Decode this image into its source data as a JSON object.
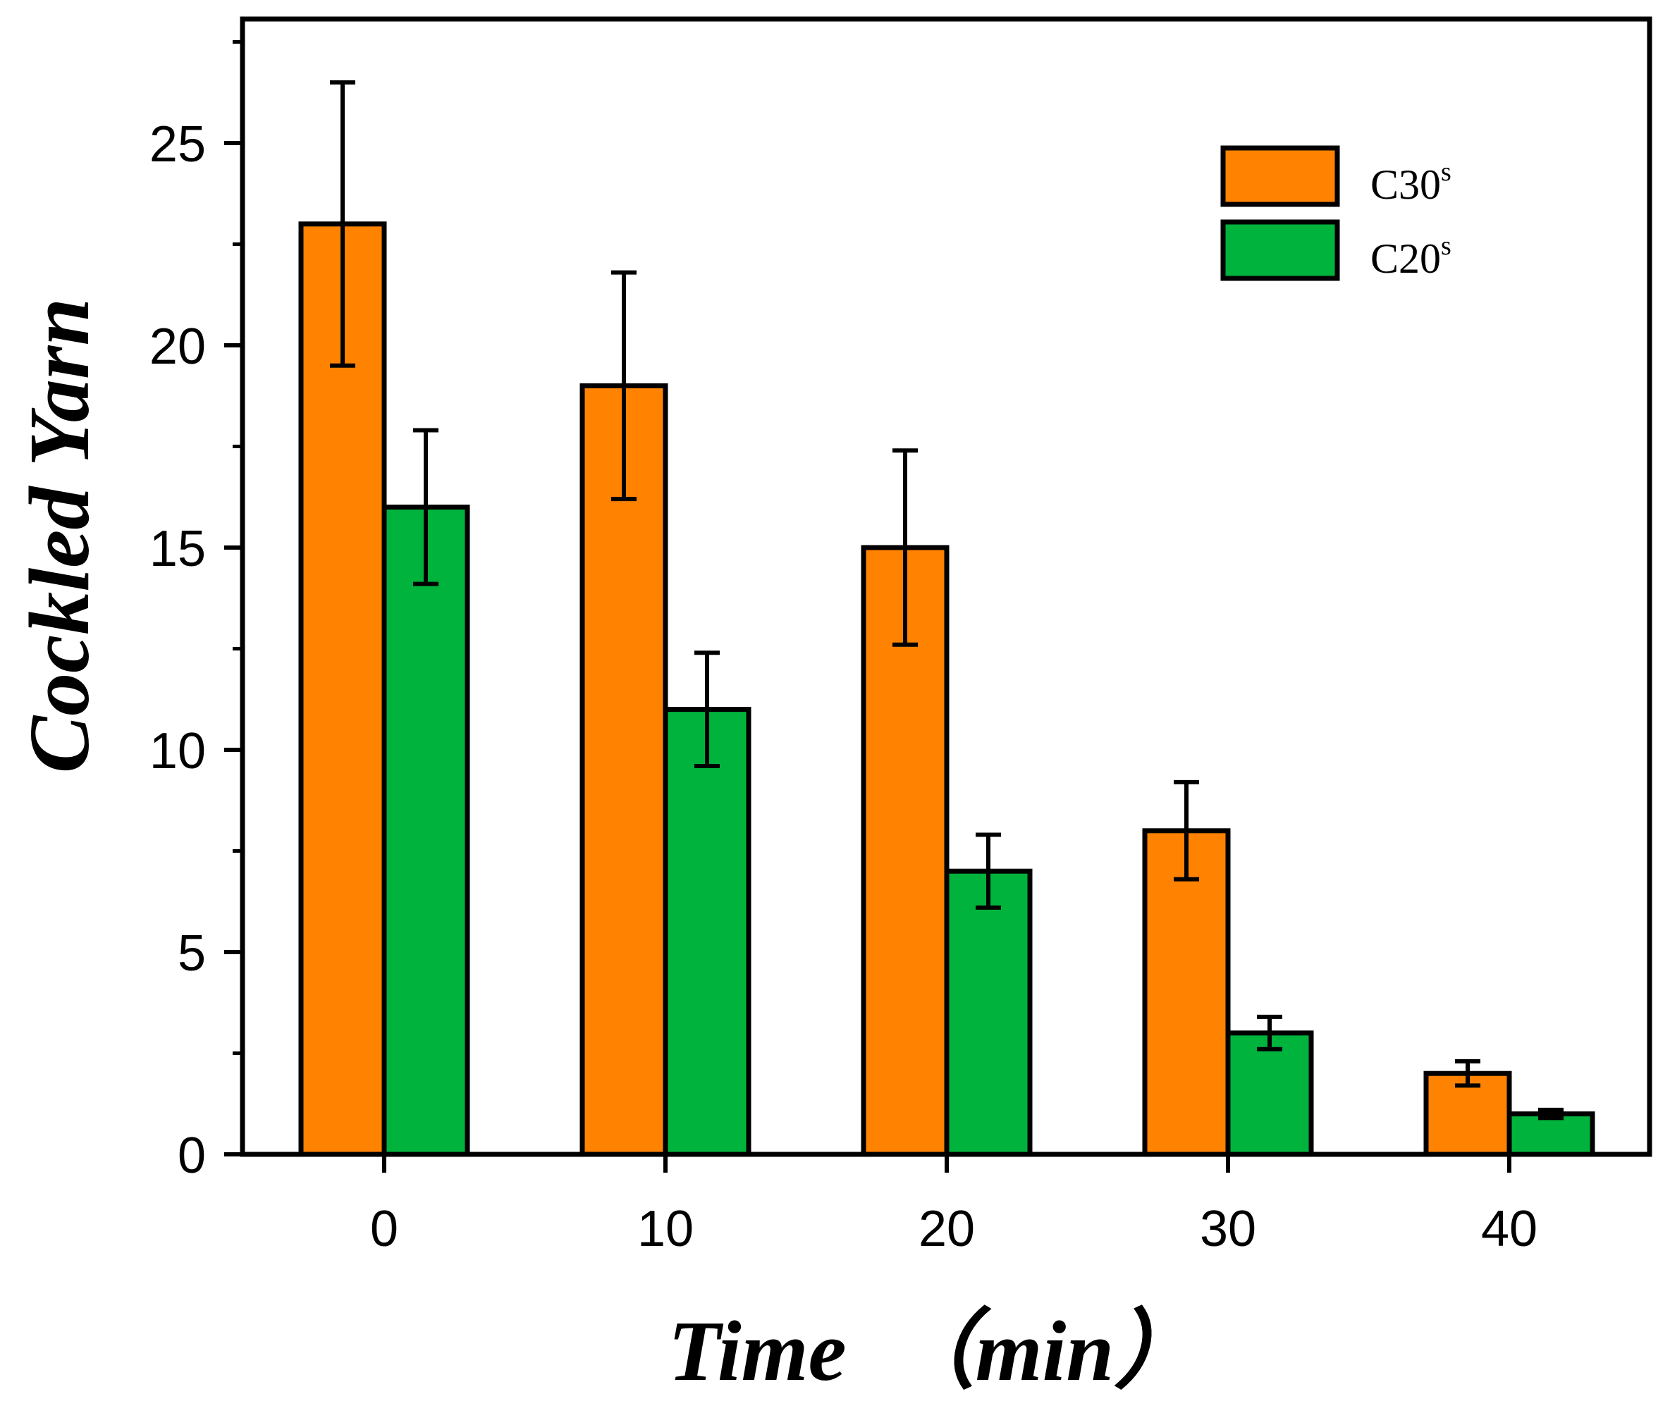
{
  "chart_data": {
    "type": "bar",
    "title": "",
    "xlabel": "Time  （min）",
    "ylabel": "Cockled Yarn",
    "categories": [
      "0",
      "10",
      "20",
      "30",
      "40"
    ],
    "yticks": [
      "0",
      "5",
      "10",
      "15",
      "20",
      "25"
    ],
    "ylim": [
      0,
      28
    ],
    "grid": false,
    "legend_position": "top-right",
    "series": [
      {
        "name": "C30",
        "name_sup": "s",
        "color": "#ff8200",
        "values": [
          23,
          19,
          15,
          8,
          2
        ],
        "errors": [
          3.5,
          2.8,
          2.4,
          1.2,
          0.3
        ]
      },
      {
        "name": "C20",
        "name_sup": "s",
        "color": "#00b33c",
        "values": [
          16,
          11,
          7,
          3,
          1
        ],
        "errors": [
          1.9,
          1.4,
          0.9,
          0.4,
          0.1
        ]
      }
    ]
  }
}
